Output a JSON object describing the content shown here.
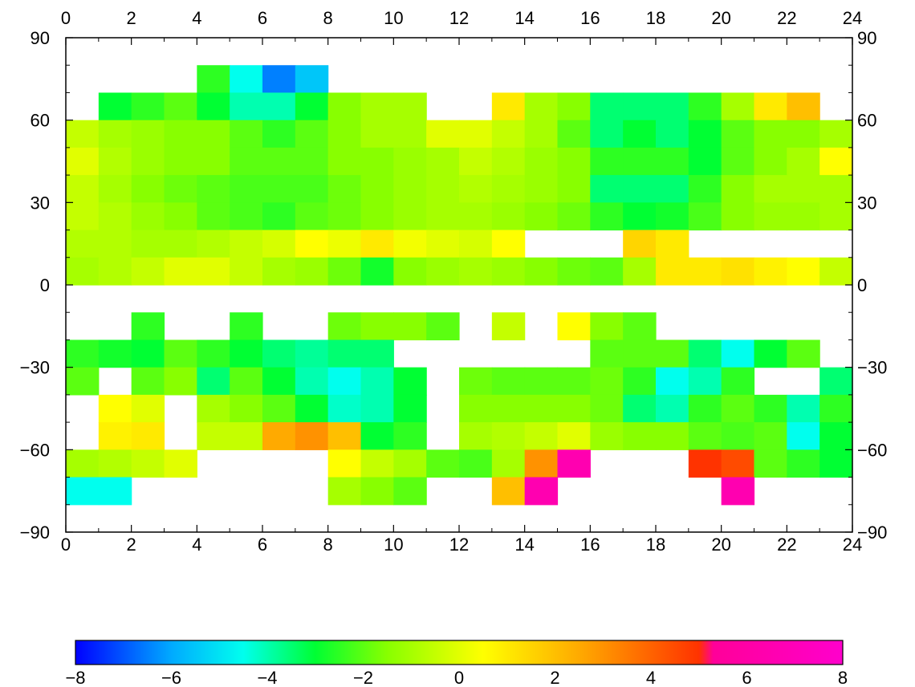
{
  "chart_data": {
    "type": "heatmap",
    "title": "",
    "xlabel": "",
    "ylabel": "",
    "xlim": [
      0,
      24
    ],
    "ylim": [
      -90,
      90
    ],
    "x_ticks": [
      0,
      2,
      4,
      6,
      8,
      10,
      12,
      14,
      16,
      18,
      20,
      22,
      24
    ],
    "y_ticks": [
      -90,
      -60,
      -30,
      0,
      30,
      60,
      90
    ],
    "x_tick_labels": [
      "0",
      "2",
      "4",
      "6",
      "8",
      "10",
      "12",
      "14",
      "16",
      "18",
      "20",
      "22",
      "24"
    ],
    "y_tick_labels": [
      "−90",
      "−60",
      "−30",
      "0",
      "30",
      "60",
      "90"
    ],
    "x_bin": 1,
    "y_bin": 10,
    "grid": false,
    "colorbar": {
      "range": [
        -8,
        8
      ],
      "ticks": [
        -8,
        -6,
        -4,
        -2,
        0,
        2,
        4,
        6,
        8
      ],
      "tick_labels": [
        "−8",
        "−6",
        "−4",
        "−2",
        "0",
        "2",
        "4",
        "6",
        "8"
      ],
      "colors": [
        {
          "v": -8,
          "c": "#0000ff"
        },
        {
          "v": -6,
          "c": "#00aaff"
        },
        {
          "v": -4.5,
          "c": "#00ffee"
        },
        {
          "v": -3,
          "c": "#00ff33"
        },
        {
          "v": -1.5,
          "c": "#88ff00"
        },
        {
          "v": 0.5,
          "c": "#ffff00"
        },
        {
          "v": 2.5,
          "c": "#ffaa00"
        },
        {
          "v": 5,
          "c": "#ff3300"
        },
        {
          "v": 5.3,
          "c": "#ff0099"
        },
        {
          "v": 8,
          "c": "#ff00cc"
        }
      ]
    },
    "grid_values": [
      {
        "lat": [
          70,
          80
        ],
        "values": [
          null,
          null,
          null,
          null,
          -2.5,
          -4.5,
          -6.5,
          -5.5,
          null,
          null,
          null,
          null,
          null,
          null,
          null,
          null,
          null,
          null,
          null,
          null,
          null,
          null,
          null,
          null
        ]
      },
      {
        "lat": [
          60,
          70
        ],
        "values": [
          null,
          -3,
          -2.5,
          -2,
          -3,
          -4,
          -4,
          -3,
          -1.5,
          -1,
          -1,
          null,
          null,
          1,
          -1,
          -1.5,
          -3.5,
          -3.5,
          -3.5,
          -2.5,
          -1,
          1,
          2,
          null
        ]
      },
      {
        "lat": [
          50,
          60
        ],
        "values": [
          -0.5,
          -1,
          -1.2,
          -1.5,
          -1.5,
          -2,
          -2.5,
          -2,
          -1.5,
          -1,
          -1,
          0,
          0,
          -0.5,
          -1,
          -2,
          -3.5,
          -3,
          -3.5,
          -3,
          -2,
          -1.5,
          -1.5,
          -1
        ]
      },
      {
        "lat": [
          40,
          50
        ],
        "values": [
          0,
          -0.8,
          -1.2,
          -1.5,
          -1.5,
          -2,
          -2,
          -2,
          -1.5,
          -1.5,
          -1.2,
          -1,
          -0.5,
          -0.8,
          -1.2,
          -1.5,
          -2.5,
          -2.5,
          -2.5,
          -3,
          -2,
          -1.5,
          -1,
          0.5
        ]
      },
      {
        "lat": [
          30,
          40
        ],
        "values": [
          -0.5,
          -1,
          -1.5,
          -1.8,
          -2,
          -2.2,
          -2.2,
          -2.2,
          -1.8,
          -1.5,
          -1.2,
          -1,
          -0.8,
          -1,
          -1.2,
          -1.5,
          -3.5,
          -3.5,
          -3.5,
          -2.5,
          -1.5,
          -1,
          -1,
          -1
        ]
      },
      {
        "lat": [
          20,
          30
        ],
        "values": [
          -0.5,
          -0.8,
          -1.2,
          -1.5,
          -2,
          -2.2,
          -2.5,
          -2,
          -1.8,
          -1.5,
          -1.2,
          -1,
          -1,
          -1.2,
          -1.5,
          -1.8,
          -2.5,
          -3,
          -2.8,
          -2.2,
          -1.5,
          -1.2,
          -1.2,
          -1
        ]
      },
      {
        "lat": [
          10,
          20
        ],
        "values": [
          -0.8,
          -0.8,
          -1,
          -1,
          -0.8,
          -0.5,
          -0.2,
          0.5,
          0.2,
          1,
          0.3,
          0,
          -0.2,
          0.5,
          null,
          null,
          null,
          1.5,
          1,
          null,
          null,
          null,
          null,
          null
        ]
      },
      {
        "lat": [
          0,
          10
        ],
        "values": [
          -1,
          -0.8,
          -0.5,
          0,
          0,
          -0.5,
          -1,
          -1.2,
          -1.8,
          -2.8,
          -1.5,
          -1.2,
          -1,
          -1.2,
          -1.5,
          -1.8,
          -2,
          -1,
          1,
          1,
          1.2,
          0.8,
          0.5,
          -0.5
        ]
      },
      {
        "lat": [
          -20,
          -10
        ],
        "values": [
          null,
          null,
          -2.5,
          null,
          null,
          -2.5,
          null,
          null,
          -1.8,
          -1.5,
          -1.5,
          -2,
          null,
          -0.5,
          null,
          0.5,
          -1.5,
          -2,
          null,
          null,
          null,
          null,
          null,
          null
        ]
      },
      {
        "lat": [
          -30,
          -20
        ],
        "values": [
          -2.5,
          -2.8,
          -3,
          -2,
          -2.5,
          -3,
          -3.5,
          -3.8,
          -3.5,
          -3.5,
          null,
          null,
          null,
          null,
          null,
          null,
          -2,
          -2,
          -2,
          -3.5,
          -4.5,
          -3,
          -2,
          null
        ]
      },
      {
        "lat": [
          -40,
          -30
        ],
        "values": [
          -2,
          null,
          -2,
          -1.5,
          -3.5,
          -2,
          -3,
          -4,
          -4.5,
          -4,
          -3,
          null,
          -1.8,
          -2,
          -2,
          -2,
          -1.8,
          -2.5,
          -4.5,
          -4,
          -2.5,
          null,
          null,
          -3.5
        ]
      },
      {
        "lat": [
          -50,
          -40
        ],
        "values": [
          null,
          0.5,
          0,
          null,
          -1,
          -1.5,
          -2,
          -3,
          -4.2,
          -4,
          -3,
          null,
          -1.5,
          -1.5,
          -1.5,
          -1.5,
          -1.8,
          -3.5,
          -4,
          -2.5,
          -2,
          -2.5,
          -4,
          -2.5
        ]
      },
      {
        "lat": [
          -60,
          -50
        ],
        "values": [
          null,
          0.8,
          1,
          null,
          -0.5,
          -0.5,
          2.5,
          3,
          2,
          -3,
          -2.5,
          null,
          -1,
          -0.8,
          -0.5,
          0,
          -1.2,
          -1.5,
          -1.5,
          -2,
          -2.2,
          -2,
          -4.5,
          -3
        ]
      },
      {
        "lat": [
          -70,
          -60
        ],
        "values": [
          -1,
          -0.8,
          -0.5,
          0,
          null,
          null,
          null,
          null,
          0.5,
          -0.5,
          -1,
          -2,
          -2.2,
          -1,
          3,
          6.5,
          null,
          null,
          null,
          5,
          4.5,
          -2,
          -2.5,
          -3
        ]
      },
      {
        "lat": [
          -80,
          -70
        ],
        "values": [
          -4.5,
          -4.5,
          null,
          null,
          null,
          null,
          null,
          null,
          -1,
          -1.5,
          -2,
          null,
          null,
          2,
          6.5,
          null,
          null,
          null,
          null,
          null,
          6.5,
          null,
          null,
          null
        ]
      }
    ]
  }
}
